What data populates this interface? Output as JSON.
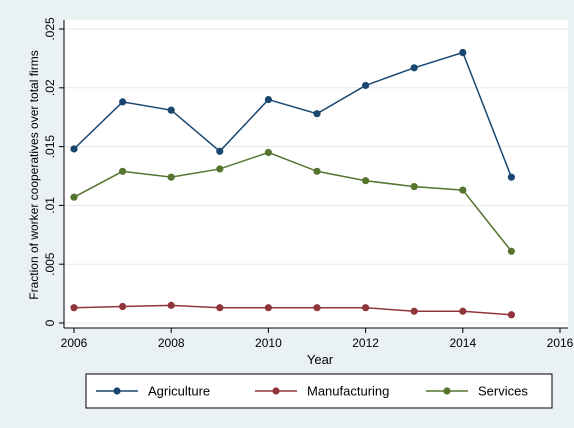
{
  "chart_data": {
    "type": "line",
    "title": "",
    "xlabel": "Year",
    "ylabel": "Fraction of worker cooperatives over total firms",
    "x": [
      2006,
      2007,
      2008,
      2009,
      2010,
      2011,
      2012,
      2013,
      2014,
      2015
    ],
    "xlim": [
      2006,
      2016
    ],
    "ylim": [
      0,
      0.025
    ],
    "xticks": [
      2006,
      2008,
      2010,
      2012,
      2014,
      2016
    ],
    "xtick_labels": [
      "2006",
      "2008",
      "2010",
      "2012",
      "2014",
      "2016"
    ],
    "yticks": [
      0,
      0.005,
      0.01,
      0.015,
      0.02,
      0.025
    ],
    "ytick_labels": [
      "0",
      ".005",
      ".01",
      ".015",
      ".02",
      ".025"
    ],
    "grid": true,
    "legend_position": "bottom",
    "series": [
      {
        "name": "Agriculture",
        "color": "#1a476f",
        "values": [
          0.0148,
          0.0188,
          0.0181,
          0.0146,
          0.019,
          0.0178,
          0.0202,
          0.0217,
          0.023,
          0.0124
        ]
      },
      {
        "name": "Manufacturing",
        "color": "#90353b",
        "values": [
          0.0013,
          0.0014,
          0.0015,
          0.0013,
          0.0013,
          0.0013,
          0.0013,
          0.001,
          0.001,
          0.0007
        ]
      },
      {
        "name": "Services",
        "color": "#55752f",
        "values": [
          0.0107,
          0.0129,
          0.0124,
          0.0131,
          0.0145,
          0.0129,
          0.0121,
          0.0116,
          0.0113,
          0.0061
        ]
      }
    ]
  }
}
